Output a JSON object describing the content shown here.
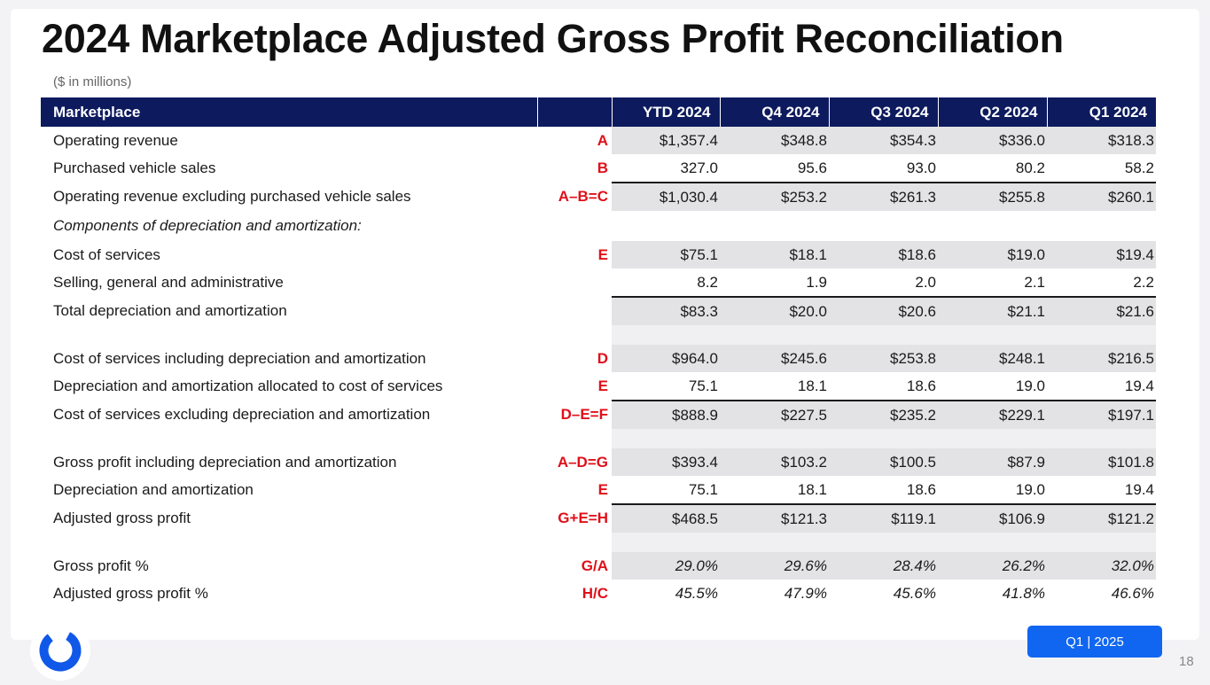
{
  "title": "2024 Marketplace Adjusted Gross Profit Reconciliation",
  "subtitle": "($ in millions)",
  "table": {
    "headers": [
      "Marketplace",
      "",
      "YTD 2024",
      "Q4 2024",
      "Q3 2024",
      "Q2 2024",
      "Q1 2024"
    ],
    "rows": [
      {
        "label": "Operating revenue",
        "ref": "A",
        "values": [
          "$1,357.4",
          "$348.8",
          "$354.3",
          "$336.0",
          "$318.3"
        ]
      },
      {
        "label": "Purchased vehicle sales",
        "ref": "B",
        "values": [
          "327.0",
          "95.6",
          "93.0",
          "80.2",
          "58.2"
        ]
      },
      {
        "label": "Operating revenue excluding purchased vehicle sales",
        "ref": "A–B=C",
        "values": [
          "$1,030.4",
          "$253.2",
          "$261.3",
          "$255.8",
          "$260.1"
        ]
      },
      {
        "label": "Cost of services",
        "ref": "E",
        "values": [
          "$75.1",
          "$18.1",
          "$18.6",
          "$19.0",
          "$19.4"
        ]
      },
      {
        "label": "Selling, general and administrative",
        "ref": "",
        "values": [
          "8.2",
          "1.9",
          "2.0",
          "2.1",
          "2.2"
        ]
      },
      {
        "label": "Total depreciation and amortization",
        "ref": "",
        "values": [
          "$83.3",
          "$20.0",
          "$20.6",
          "$21.1",
          "$21.6"
        ]
      },
      {
        "label": "Cost of services including depreciation and amortization",
        "ref": "D",
        "values": [
          "$964.0",
          "$245.6",
          "$253.8",
          "$248.1",
          "$216.5"
        ]
      },
      {
        "label": "Depreciation and amortization allocated to cost of services",
        "ref": "E",
        "values": [
          "75.1",
          "18.1",
          "18.6",
          "19.0",
          "19.4"
        ]
      },
      {
        "label": "Cost of services excluding depreciation and amortization",
        "ref": "D–E=F",
        "values": [
          "$888.9",
          "$227.5",
          "$235.2",
          "$229.1",
          "$197.1"
        ]
      },
      {
        "label": "Gross profit including depreciation and amortization",
        "ref": "A–D=G",
        "values": [
          "$393.4",
          "$103.2",
          "$100.5",
          "$87.9",
          "$101.8"
        ]
      },
      {
        "label": "Depreciation and amortization",
        "ref": "E",
        "values": [
          "75.1",
          "18.1",
          "18.6",
          "19.0",
          "19.4"
        ]
      },
      {
        "label": "Adjusted gross profit",
        "ref": "G+E=H",
        "values": [
          "$468.5",
          "$121.3",
          "$119.1",
          "$106.9",
          "$121.2"
        ]
      },
      {
        "label": "Gross profit %",
        "ref": "G/A",
        "values": [
          "29.0%",
          "29.6%",
          "28.4%",
          "26.2%",
          "32.0%"
        ]
      },
      {
        "label": "Adjusted gross profit %",
        "ref": "H/C",
        "values": [
          "45.5%",
          "47.9%",
          "45.6%",
          "41.8%",
          "46.6%"
        ]
      }
    ],
    "section_label": "Components of depreciation and amortization",
    "section_colon": ":"
  },
  "badge": "Q1 | 2025",
  "page_number": "18",
  "colors": {
    "header_bg": "#0d1b5e",
    "ref_red": "#e0101a",
    "badge_blue": "#1066f0",
    "logo_blue": "#1058e8"
  },
  "icons": {
    "logo": "company-ring-logo"
  }
}
